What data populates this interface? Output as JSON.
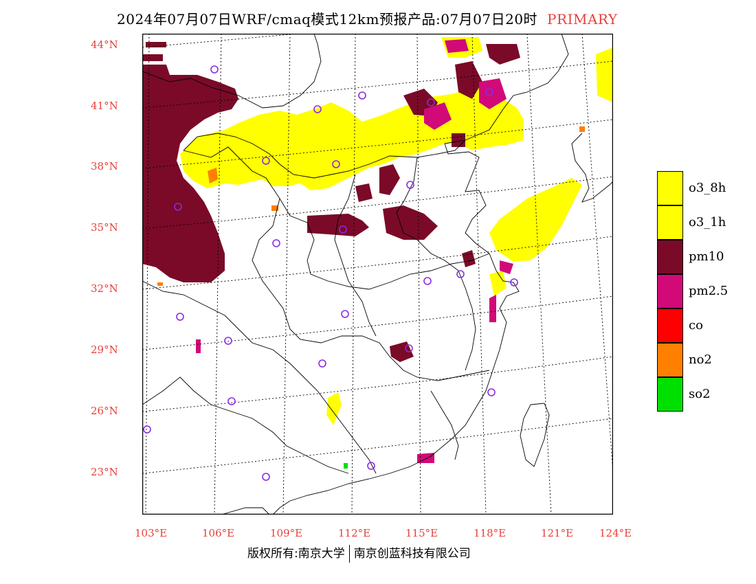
{
  "title": {
    "main": "2024年07月07日WRF/cmaq模式12km预报产品:07月07日20时",
    "tag": "PRIMARY"
  },
  "axes": {
    "lat_labels": [
      "44°N",
      "41°N",
      "38°N",
      "35°N",
      "32°N",
      "29°N",
      "26°N",
      "23°N"
    ],
    "lon_labels": [
      "103°E",
      "106°E",
      "109°E",
      "112°E",
      "115°E",
      "118°E",
      "121°E",
      "124°E"
    ]
  },
  "legend": [
    {
      "label": "o3_8h",
      "color": "#ffff00"
    },
    {
      "label": "o3_1h",
      "color": "#ffff00"
    },
    {
      "label": "pm10",
      "color": "#7a0a28"
    },
    {
      "label": "pm2.5",
      "color": "#d10a78"
    },
    {
      "label": "co",
      "color": "#ff0000"
    },
    {
      "label": "no2",
      "color": "#ff7f00"
    },
    {
      "label": "so2",
      "color": "#00e000"
    }
  ],
  "copyright": {
    "left": "版权所有:南京大学",
    "right": "南京创蓝科技有限公司"
  },
  "colors": {
    "label_red": "#e8403a",
    "pm10": "#7a0a28",
    "pm25": "#d10a78",
    "o3": "#ffff00",
    "no2": "#ff7f00",
    "so2": "#00e000",
    "station_circle": "#8a2be2"
  }
}
